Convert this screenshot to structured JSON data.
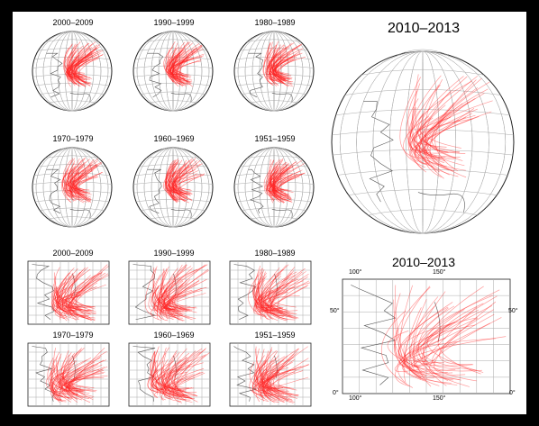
{
  "figure": {
    "globe_small_titles": [
      "2000–2009",
      "1990–1999",
      "1980–1989",
      "1970–1979",
      "1960–1969",
      "1951–1959"
    ],
    "globe_large_title": "2010–2013",
    "map_small_titles": [
      "2000–2009",
      "1990–1999",
      "1980–1989",
      "1970–1979",
      "1960–1969",
      "1951–1959"
    ],
    "map_large_title": "2010–2013",
    "map_large_ticks": {
      "top": [
        "100°",
        "150°"
      ],
      "bottom": [
        "100°",
        "150°"
      ],
      "left": [
        "50°",
        "0°"
      ],
      "right": [
        "50°",
        "0°"
      ]
    },
    "colors": {
      "track": "#ff2020",
      "background": "#000000",
      "panel": "#ffffff"
    }
  }
}
